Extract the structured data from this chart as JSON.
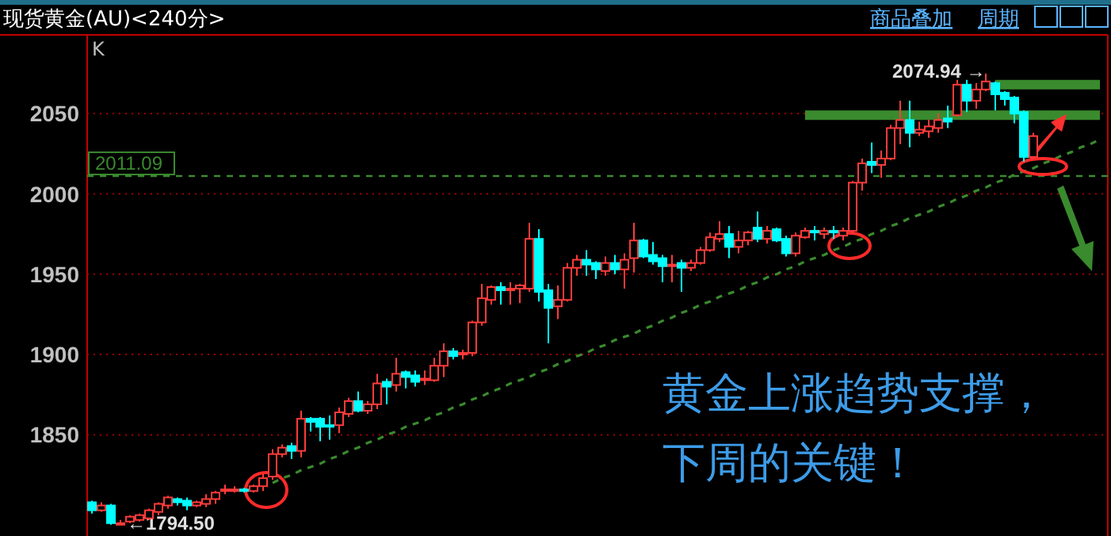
{
  "chart_data": {
    "type": "candlestick",
    "title": "现货黄金(AU)<240分>",
    "annotations": [
      "商品叠加",
      "周期",
      "K",
      "2074.94 →",
      "←1794.50",
      "黄金上涨趋势支撑，",
      "下周的关键！"
    ],
    "categories": [
      null,
      null,
      null,
      null,
      null,
      null,
      null,
      null,
      null,
      null,
      null,
      null,
      null,
      null,
      null,
      null,
      null,
      null,
      null,
      null,
      null,
      null,
      null,
      null,
      null,
      null,
      null,
      null,
      null,
      null,
      null,
      null,
      null,
      null,
      null,
      null,
      null,
      null,
      null,
      null,
      null,
      null,
      null,
      null,
      null,
      null,
      null,
      null,
      null,
      null,
      null,
      null,
      null,
      null,
      null,
      null,
      null,
      null,
      null,
      null,
      null,
      null,
      null,
      null,
      null,
      null,
      null,
      null,
      null,
      null,
      null,
      null,
      null,
      null,
      null,
      null,
      null,
      null,
      null,
      null,
      null,
      null,
      null,
      null,
      null,
      null,
      null,
      null,
      null,
      null,
      null,
      null,
      null,
      null,
      null,
      null,
      null,
      null,
      null,
      null,
      null,
      null,
      null,
      null,
      null,
      null,
      null
    ],
    "ohlc": [
      [
        1808,
        1809,
        1801,
        1803
      ],
      [
        1803,
        1808,
        1802,
        1806
      ],
      [
        1806,
        1807,
        1794,
        1795
      ],
      [
        1795,
        1797,
        1794.5,
        1795
      ],
      [
        1796,
        1800,
        1795,
        1799
      ],
      [
        1797,
        1801,
        1796,
        1800
      ],
      [
        1798,
        1804,
        1797,
        1803
      ],
      [
        1802,
        1808,
        1800,
        1807
      ],
      [
        1806,
        1812,
        1804,
        1811
      ],
      [
        1810,
        1811,
        1806,
        1808
      ],
      [
        1809,
        1811,
        1803,
        1806
      ],
      [
        1806,
        1809,
        1805,
        1808
      ],
      [
        1807,
        1813,
        1805,
        1810
      ],
      [
        1810,
        1815,
        1807,
        1814
      ],
      [
        1815,
        1819,
        1813,
        1816
      ],
      [
        1815,
        1818,
        1814,
        1816
      ],
      [
        1816,
        1817,
        1814,
        1815
      ],
      [
        1815,
        1819,
        1814,
        1818
      ],
      [
        1818,
        1826,
        1815,
        1823
      ],
      [
        1824,
        1841,
        1822,
        1838
      ],
      [
        1838,
        1844,
        1836,
        1842
      ],
      [
        1843,
        1845,
        1835,
        1840
      ],
      [
        1840,
        1865,
        1836,
        1860
      ],
      [
        1860,
        1861,
        1852,
        1858
      ],
      [
        1860,
        1861,
        1846,
        1855
      ],
      [
        1856,
        1862,
        1847,
        1855
      ],
      [
        1856,
        1867,
        1851,
        1864
      ],
      [
        1863,
        1873,
        1861,
        1871
      ],
      [
        1871,
        1877,
        1864,
        1865
      ],
      [
        1865,
        1871,
        1863,
        1869
      ],
      [
        1869,
        1888,
        1866,
        1882
      ],
      [
        1883,
        1885,
        1869,
        1880
      ],
      [
        1881,
        1898,
        1877,
        1888
      ],
      [
        1889,
        1890,
        1879,
        1886
      ],
      [
        1887,
        1890,
        1880,
        1883
      ],
      [
        1884,
        1890,
        1881,
        1885
      ],
      [
        1884,
        1898,
        1883,
        1893
      ],
      [
        1893,
        1907,
        1886,
        1902
      ],
      [
        1902,
        1904,
        1897,
        1899
      ],
      [
        1900,
        1903,
        1897,
        1901
      ],
      [
        1901,
        1921,
        1899,
        1920
      ],
      [
        1920,
        1944,
        1918,
        1935
      ],
      [
        1934,
        1943,
        1931,
        1942
      ],
      [
        1942,
        1945,
        1931,
        1940
      ],
      [
        1940,
        1945,
        1931,
        1941
      ],
      [
        1941,
        1944,
        1932,
        1943
      ],
      [
        1941,
        1982,
        1939,
        1972
      ],
      [
        1972,
        1978,
        1933,
        1939
      ],
      [
        1940,
        1944,
        1907,
        1929
      ],
      [
        1930,
        1943,
        1922,
        1934
      ],
      [
        1934,
        1957,
        1933,
        1954
      ],
      [
        1954,
        1962,
        1949,
        1959
      ],
      [
        1959,
        1965,
        1949,
        1956
      ],
      [
        1957,
        1958,
        1947,
        1953
      ],
      [
        1952,
        1961,
        1949,
        1957
      ],
      [
        1957,
        1962,
        1950,
        1953
      ],
      [
        1953,
        1963,
        1941,
        1959
      ],
      [
        1960,
        1982,
        1951,
        1971
      ],
      [
        1971,
        1972,
        1960,
        1961
      ],
      [
        1962,
        1970,
        1956,
        1958
      ],
      [
        1960,
        1962,
        1945,
        1955
      ],
      [
        1955,
        1962,
        1945,
        1956
      ],
      [
        1957,
        1959,
        1939,
        1954
      ],
      [
        1954,
        1959,
        1952,
        1957
      ],
      [
        1957,
        1967,
        1956,
        1965
      ],
      [
        1965,
        1976,
        1964,
        1973
      ],
      [
        1972,
        1983,
        1970,
        1975
      ],
      [
        1975,
        1980,
        1960,
        1967
      ],
      [
        1967,
        1977,
        1963,
        1971
      ],
      [
        1971,
        1977,
        1968,
        1976
      ],
      [
        1979,
        1989,
        1970,
        1972
      ],
      [
        1972,
        1980,
        1969,
        1977
      ],
      [
        1978,
        1979,
        1970,
        1971
      ],
      [
        1972,
        1974,
        1961,
        1963
      ],
      [
        1963,
        1976,
        1961,
        1974
      ],
      [
        1973,
        1979,
        1972,
        1977
      ],
      [
        1977,
        1980,
        1971,
        1976
      ],
      [
        1975,
        1979,
        1972,
        1977
      ],
      [
        1977,
        1980,
        1972,
        1976
      ],
      [
        1974,
        1979,
        1971,
        1977
      ],
      [
        1977,
        2008,
        1975,
        2007
      ],
      [
        2007,
        2022,
        2002,
        2019
      ],
      [
        2020,
        2032,
        2013,
        2018
      ],
      [
        2018,
        2027,
        2010,
        2022
      ],
      [
        2022,
        2043,
        2021,
        2041
      ],
      [
        2041,
        2058,
        2031,
        2046
      ],
      [
        2046,
        2058,
        2029,
        2038
      ],
      [
        2038,
        2045,
        2036,
        2040
      ],
      [
        2039,
        2046,
        2035,
        2042
      ],
      [
        2041,
        2050,
        2038,
        2046
      ],
      [
        2047,
        2055,
        2041,
        2045
      ],
      [
        2049,
        2071,
        2048,
        2068
      ],
      [
        2068,
        2071,
        2051,
        2058
      ],
      [
        2058,
        2069,
        2053,
        2065
      ],
      [
        2065,
        2074.94,
        2064,
        2070
      ],
      [
        2069,
        2070,
        2052,
        2062
      ],
      [
        2063,
        2064,
        2055,
        2059
      ],
      [
        2060,
        2061,
        2044,
        2050
      ],
      [
        2051,
        2052,
        2020,
        2023
      ],
      [
        2023,
        2038,
        2022,
        2036
      ],
      null,
      null,
      null,
      null,
      null,
      null,
      null
    ],
    "series": [
      {
        "type": "line",
        "color": "#3a8a2e",
        "line_style": "dashed",
        "values": [
          null,
          null,
          null,
          null,
          null,
          null,
          null,
          null,
          null,
          null,
          null,
          null,
          null,
          null,
          null,
          null,
          null,
          null,
          null,
          1820,
          1823,
          1825,
          1828,
          1830,
          1832,
          1835,
          1837,
          1840,
          1842,
          1845,
          1847,
          1850,
          1852,
          1855,
          1857,
          1859,
          1862,
          1864,
          1867,
          1869,
          1872,
          1874,
          1877,
          1879,
          1882,
          1884,
          1886,
          1889,
          1891,
          1894,
          1896,
          1899,
          1901,
          1904,
          1906,
          1909,
          1911,
          1913,
          1916,
          1918,
          1921,
          1923,
          1926,
          1928,
          1931,
          1933,
          1936,
          1938,
          1940,
          1943,
          1945,
          1948,
          1950,
          1953,
          1955,
          1958,
          1960,
          1962,
          1965,
          1967,
          1970,
          1972,
          1975,
          1977,
          1980,
          1982,
          1985,
          1987,
          1989,
          1992,
          1994,
          1997,
          1999,
          2002,
          2004,
          2007,
          2009,
          2012,
          2014,
          2016,
          2019,
          2021,
          2024,
          2026,
          2029,
          2031,
          2034
        ]
      },
      {
        "type": "line",
        "color": "#3a8a2e",
        "line_style": "solid",
        "values": [
          null,
          null,
          null,
          null,
          null,
          null,
          null,
          null,
          null,
          null,
          null,
          null,
          null,
          null,
          null,
          null,
          null,
          null,
          null,
          null,
          null,
          null,
          null,
          null,
          null,
          null,
          null,
          null,
          null,
          null,
          null,
          null,
          null,
          null,
          null,
          null,
          null,
          null,
          null,
          null,
          null,
          null,
          null,
          null,
          null,
          null,
          null,
          null,
          null,
          null,
          null,
          null,
          null,
          null,
          null,
          null,
          null,
          null,
          null,
          null,
          null,
          null,
          null,
          null,
          null,
          null,
          null,
          null,
          null,
          null,
          null,
          null,
          null,
          null,
          null,
          2049,
          2049,
          2049,
          2049,
          2049,
          2049,
          2049,
          2049,
          2049,
          2049,
          2049,
          2049,
          2049,
          2049,
          2049,
          2049,
          2049,
          2049,
          2049,
          2049,
          2049,
          2049,
          2049,
          2049,
          2049,
          2049,
          2049,
          2049,
          2049,
          2049,
          2049,
          2049
        ]
      },
      {
        "type": "line",
        "color": "#3a8a2e",
        "line_style": "solid",
        "values": [
          null,
          null,
          null,
          null,
          null,
          null,
          null,
          null,
          null,
          null,
          null,
          null,
          null,
          null,
          null,
          null,
          null,
          null,
          null,
          null,
          null,
          null,
          null,
          null,
          null,
          null,
          null,
          null,
          null,
          null,
          null,
          null,
          null,
          null,
          null,
          null,
          null,
          null,
          null,
          null,
          null,
          null,
          null,
          null,
          null,
          null,
          null,
          null,
          null,
          null,
          null,
          null,
          null,
          null,
          null,
          null,
          null,
          null,
          null,
          null,
          null,
          null,
          null,
          null,
          null,
          null,
          null,
          null,
          null,
          null,
          null,
          null,
          null,
          null,
          null,
          null,
          null,
          null,
          null,
          null,
          null,
          null,
          null,
          null,
          null,
          null,
          null,
          null,
          null,
          null,
          null,
          null,
          null,
          null,
          null,
          2068,
          2068,
          2068,
          2068,
          2068,
          2068,
          2068,
          2068,
          2068,
          2068,
          2068,
          2068
        ]
      }
    ],
    "ref_lines": [
      {
        "axis": "y",
        "value": 2011.09,
        "label": "2011.09",
        "color": "#3a8a2e",
        "line_style": "dashed"
      }
    ],
    "ylim": [
      1787,
      2099
    ],
    "yticks": [
      1850,
      1900,
      1950,
      2000,
      2050
    ],
    "grid": "y"
  }
}
